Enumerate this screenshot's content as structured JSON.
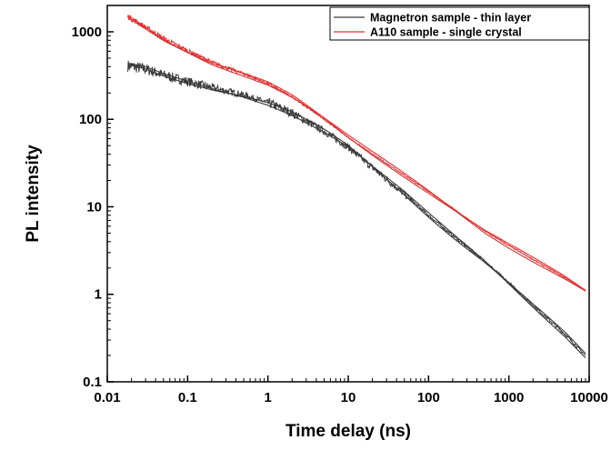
{
  "chart_data": {
    "type": "line",
    "xlabel": "Time delay (ns)",
    "ylabel": "PL intensity",
    "xscale": "log",
    "yscale": "log",
    "xlim": [
      0.01,
      10000
    ],
    "ylim": [
      0.1,
      2000
    ],
    "x_ticks": [
      0.01,
      0.1,
      1,
      10,
      100,
      1000,
      10000
    ],
    "x_tick_labels": [
      "0.01",
      "0.1",
      "1",
      "10",
      "100",
      "1000",
      "10000"
    ],
    "y_ticks": [
      0.1,
      1,
      10,
      100,
      1000
    ],
    "y_tick_labels": [
      "0.1",
      "1",
      "10",
      "100",
      "1000"
    ],
    "grid": false,
    "legend": {
      "position": "top-right"
    },
    "series": [
      {
        "name": "Magnetron sample - thin layer",
        "color": "#3a3a3a",
        "noise": 0.09,
        "x": [
          0.018,
          0.03,
          0.05,
          0.1,
          0.2,
          0.5,
          1,
          2,
          5,
          10,
          20,
          50,
          100,
          200,
          500,
          1000,
          2000,
          5000,
          9000
        ],
        "y": [
          410,
          375,
          320,
          270,
          230,
          190,
          155,
          118,
          73,
          48,
          28,
          14,
          8.0,
          4.7,
          2.4,
          1.35,
          0.75,
          0.35,
          0.2
        ]
      },
      {
        "name": "A110 sample - single crystal",
        "color": "#e03030",
        "noise": 0.04,
        "x": [
          0.018,
          0.03,
          0.05,
          0.1,
          0.2,
          0.5,
          1,
          2,
          5,
          10,
          20,
          50,
          100,
          200,
          500,
          1000,
          2000,
          5000,
          9000
        ],
        "y": [
          1500,
          1130,
          840,
          610,
          450,
          330,
          255,
          180,
          100,
          62,
          40,
          23,
          15,
          9.6,
          5.3,
          3.6,
          2.5,
          1.55,
          1.1
        ]
      }
    ]
  }
}
